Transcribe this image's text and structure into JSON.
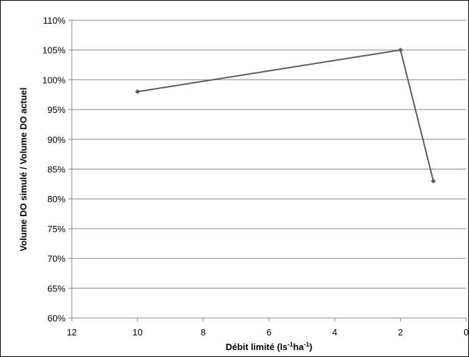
{
  "chart_data": {
    "type": "line",
    "title": "",
    "xlabel": {
      "prefix": "Débit limité (ls",
      "sup1": "-1",
      "middle": "ha",
      "sup2": "-1",
      "suffix": ")"
    },
    "ylabel": "Volume DO simulé / Volume DO actuel",
    "x_axis": {
      "min": 0,
      "max": 12,
      "reversed": true,
      "ticks": [
        12,
        10,
        8,
        6,
        4,
        2,
        0
      ],
      "tick_labels": [
        "12",
        "10",
        "8",
        "6",
        "4",
        "2",
        "0"
      ]
    },
    "y_axis": {
      "min": 0.6,
      "max": 1.1,
      "ticks": [
        0.6,
        0.65,
        0.7,
        0.75,
        0.8,
        0.85,
        0.9,
        0.95,
        1.0,
        1.05,
        1.1
      ],
      "tick_labels": [
        "60%",
        "65%",
        "70%",
        "75%",
        "80%",
        "85%",
        "90%",
        "95%",
        "100%",
        "105%",
        "110%"
      ]
    },
    "grid": {
      "horizontal": true,
      "vertical": false
    },
    "legend": "none",
    "series": [
      {
        "color": "#595959",
        "points": [
          {
            "x": 10,
            "y": 0.98
          },
          {
            "x": 2,
            "y": 1.05
          },
          {
            "x": 1,
            "y": 0.83
          }
        ]
      }
    ]
  }
}
